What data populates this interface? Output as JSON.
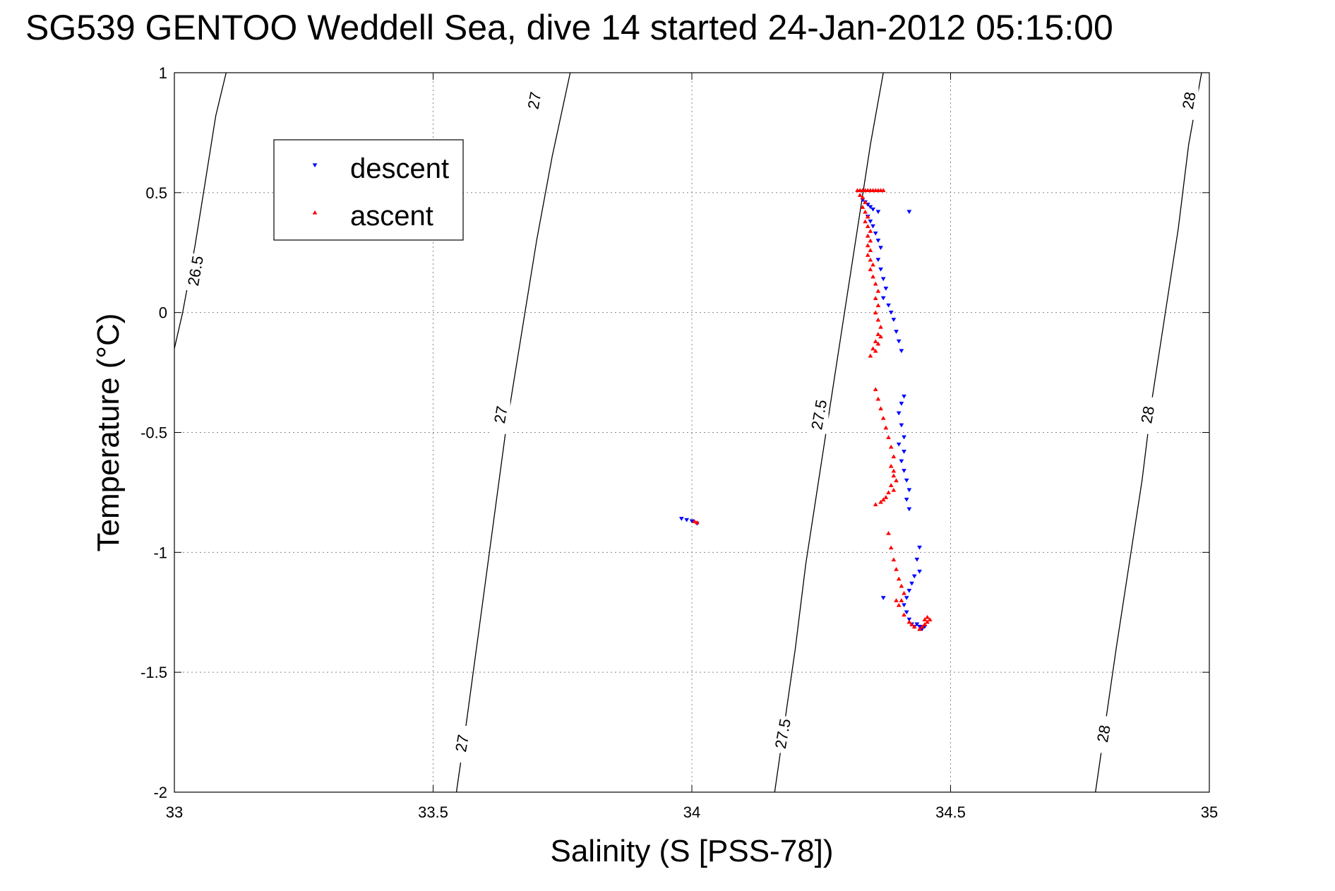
{
  "chart_data": {
    "type": "scatter",
    "title": "SG539 GENTOO Weddell Sea, dive 14 started 24-Jan-2012 05:15:00",
    "xlabel": "Salinity (S [PSS-78])",
    "ylabel": "Temperature (°C)",
    "xlim": [
      33,
      35
    ],
    "ylim": [
      -2,
      1
    ],
    "xticks": [
      33,
      33.5,
      34,
      34.5,
      35
    ],
    "xtick_labels": [
      "33",
      "33.5",
      "34",
      "34.5",
      "35"
    ],
    "yticks": [
      -2,
      -1.5,
      -1,
      -0.5,
      0,
      0.5,
      1
    ],
    "ytick_labels": [
      "-2",
      "-1.5",
      "-1",
      "-0.5",
      "0",
      "0.5",
      "1"
    ],
    "grid": true,
    "legend_position": "top-left",
    "series": [
      {
        "name": "descent",
        "color": "#0000ff",
        "marker": "triangle-down",
        "points": [
          [
            33.98,
            -0.86
          ],
          [
            33.99,
            -0.865
          ],
          [
            34.0,
            -0.87
          ],
          [
            34.01,
            -0.88
          ],
          [
            34.33,
            0.47
          ],
          [
            34.335,
            0.46
          ],
          [
            34.34,
            0.45
          ],
          [
            34.345,
            0.44
          ],
          [
            34.35,
            0.43
          ],
          [
            34.36,
            0.42
          ],
          [
            34.34,
            0.4
          ],
          [
            34.345,
            0.38
          ],
          [
            34.35,
            0.36
          ],
          [
            34.355,
            0.33
          ],
          [
            34.36,
            0.3
          ],
          [
            34.365,
            0.27
          ],
          [
            34.36,
            0.22
          ],
          [
            34.365,
            0.18
          ],
          [
            34.37,
            0.14
          ],
          [
            34.375,
            0.1
          ],
          [
            34.37,
            0.06
          ],
          [
            34.38,
            0.03
          ],
          [
            34.385,
            0.0
          ],
          [
            34.39,
            -0.03
          ],
          [
            34.395,
            -0.08
          ],
          [
            34.4,
            -0.12
          ],
          [
            34.405,
            -0.16
          ],
          [
            34.42,
            0.42
          ],
          [
            34.41,
            -0.35
          ],
          [
            34.405,
            -0.38
          ],
          [
            34.4,
            -0.42
          ],
          [
            34.405,
            -0.47
          ],
          [
            34.41,
            -0.52
          ],
          [
            34.4,
            -0.55
          ],
          [
            34.41,
            -0.58
          ],
          [
            34.405,
            -0.62
          ],
          [
            34.41,
            -0.66
          ],
          [
            34.415,
            -0.7
          ],
          [
            34.42,
            -0.74
          ],
          [
            34.415,
            -0.78
          ],
          [
            34.42,
            -0.82
          ],
          [
            34.44,
            -0.98
          ],
          [
            34.435,
            -1.03
          ],
          [
            34.44,
            -1.08
          ],
          [
            34.43,
            -1.1
          ],
          [
            34.425,
            -1.13
          ],
          [
            34.42,
            -1.16
          ],
          [
            34.415,
            -1.19
          ],
          [
            34.41,
            -1.22
          ],
          [
            34.415,
            -1.25
          ],
          [
            34.42,
            -1.28
          ],
          [
            34.425,
            -1.3
          ],
          [
            34.43,
            -1.31
          ],
          [
            34.435,
            -1.3
          ],
          [
            34.44,
            -1.31
          ],
          [
            34.445,
            -1.32
          ],
          [
            34.45,
            -1.31
          ],
          [
            34.37,
            -1.19
          ]
        ]
      },
      {
        "name": "ascent",
        "color": "#ff0000",
        "marker": "triangle-up",
        "points": [
          [
            34.005,
            -0.87
          ],
          [
            34.01,
            -0.875
          ],
          [
            34.32,
            0.51
          ],
          [
            34.325,
            0.51
          ],
          [
            34.33,
            0.51
          ],
          [
            34.335,
            0.51
          ],
          [
            34.34,
            0.51
          ],
          [
            34.345,
            0.51
          ],
          [
            34.35,
            0.51
          ],
          [
            34.355,
            0.51
          ],
          [
            34.36,
            0.51
          ],
          [
            34.365,
            0.51
          ],
          [
            34.37,
            0.51
          ],
          [
            34.325,
            0.49
          ],
          [
            34.33,
            0.48
          ],
          [
            34.335,
            0.46
          ],
          [
            34.33,
            0.44
          ],
          [
            34.335,
            0.42
          ],
          [
            34.34,
            0.4
          ],
          [
            34.335,
            0.38
          ],
          [
            34.34,
            0.36
          ],
          [
            34.345,
            0.34
          ],
          [
            34.34,
            0.32
          ],
          [
            34.345,
            0.3
          ],
          [
            34.34,
            0.28
          ],
          [
            34.345,
            0.26
          ],
          [
            34.34,
            0.24
          ],
          [
            34.345,
            0.22
          ],
          [
            34.35,
            0.2
          ],
          [
            34.345,
            0.18
          ],
          [
            34.35,
            0.15
          ],
          [
            34.355,
            0.12
          ],
          [
            34.36,
            0.09
          ],
          [
            34.355,
            0.06
          ],
          [
            34.36,
            0.03
          ],
          [
            34.355,
            0.0
          ],
          [
            34.36,
            -0.03
          ],
          [
            34.365,
            -0.06
          ],
          [
            34.36,
            -0.09
          ],
          [
            34.355,
            -0.12
          ],
          [
            34.35,
            -0.15
          ],
          [
            34.345,
            -0.18
          ],
          [
            34.355,
            -0.16
          ],
          [
            34.36,
            -0.13
          ],
          [
            34.365,
            -0.1
          ],
          [
            34.355,
            -0.32
          ],
          [
            34.36,
            -0.36
          ],
          [
            34.365,
            -0.4
          ],
          [
            34.37,
            -0.44
          ],
          [
            34.375,
            -0.48
          ],
          [
            34.38,
            -0.52
          ],
          [
            34.385,
            -0.56
          ],
          [
            34.39,
            -0.6
          ],
          [
            34.385,
            -0.64
          ],
          [
            34.39,
            -0.68
          ],
          [
            34.385,
            -0.72
          ],
          [
            34.38,
            -0.75
          ],
          [
            34.375,
            -0.77
          ],
          [
            34.37,
            -0.78
          ],
          [
            34.365,
            -0.79
          ],
          [
            34.355,
            -0.8
          ],
          [
            34.39,
            -0.74
          ],
          [
            34.395,
            -0.7
          ],
          [
            34.39,
            -0.66
          ],
          [
            34.38,
            -0.92
          ],
          [
            34.385,
            -0.98
          ],
          [
            34.39,
            -1.03
          ],
          [
            34.395,
            -1.07
          ],
          [
            34.4,
            -1.11
          ],
          [
            34.405,
            -1.14
          ],
          [
            34.41,
            -1.17
          ],
          [
            34.405,
            -1.2
          ],
          [
            34.4,
            -1.22
          ],
          [
            34.395,
            -1.2
          ],
          [
            34.41,
            -1.26
          ],
          [
            34.42,
            -1.29
          ],
          [
            34.425,
            -1.3
          ],
          [
            34.43,
            -1.31
          ],
          [
            34.44,
            -1.32
          ],
          [
            34.445,
            -1.31
          ],
          [
            34.45,
            -1.3
          ],
          [
            34.455,
            -1.29
          ],
          [
            34.46,
            -1.28
          ],
          [
            34.455,
            -1.27
          ],
          [
            34.45,
            -1.28
          ]
        ]
      }
    ],
    "density_contours": [
      {
        "label": "26.5",
        "points": [
          [
            33.0,
            -0.15
          ],
          [
            33.016,
            0.0
          ],
          [
            33.04,
            0.28
          ],
          [
            33.06,
            0.55
          ],
          [
            33.08,
            0.82
          ],
          [
            33.1,
            1.0
          ]
        ],
        "labels_at": [
          [
            33.04,
            0.17
          ]
        ]
      },
      {
        "label": "27",
        "points": [
          [
            33.545,
            -2.0
          ],
          [
            33.565,
            -1.7
          ],
          [
            33.59,
            -1.3
          ],
          [
            33.615,
            -0.9
          ],
          [
            33.64,
            -0.5
          ],
          [
            33.67,
            -0.1
          ],
          [
            33.7,
            0.3
          ],
          [
            33.73,
            0.65
          ],
          [
            33.765,
            1.0
          ]
        ],
        "labels_at": [
          [
            33.555,
            -1.8
          ],
          [
            33.63,
            -0.43
          ],
          [
            33.695,
            0.88
          ]
        ]
      },
      {
        "label": "27.5",
        "points": [
          [
            34.16,
            -2.0
          ],
          [
            34.18,
            -1.7
          ],
          [
            34.2,
            -1.4
          ],
          [
            34.22,
            -1.05
          ],
          [
            34.245,
            -0.7
          ],
          [
            34.27,
            -0.35
          ],
          [
            34.295,
            0.0
          ],
          [
            34.32,
            0.35
          ],
          [
            34.345,
            0.7
          ],
          [
            34.37,
            1.0
          ]
        ],
        "labels_at": [
          [
            34.175,
            -1.76
          ],
          [
            34.245,
            -0.43
          ]
        ]
      },
      {
        "label": "28",
        "points": [
          [
            34.78,
            -2.0
          ],
          [
            34.8,
            -1.7
          ],
          [
            34.82,
            -1.4
          ],
          [
            34.845,
            -1.05
          ],
          [
            34.87,
            -0.7
          ],
          [
            34.89,
            -0.35
          ],
          [
            34.915,
            0.0
          ],
          [
            34.94,
            0.35
          ],
          [
            34.96,
            0.7
          ],
          [
            34.985,
            1.0
          ]
        ],
        "labels_at": [
          [
            34.795,
            -1.76
          ],
          [
            34.88,
            -0.43
          ],
          [
            34.96,
            0.88
          ]
        ]
      }
    ]
  }
}
